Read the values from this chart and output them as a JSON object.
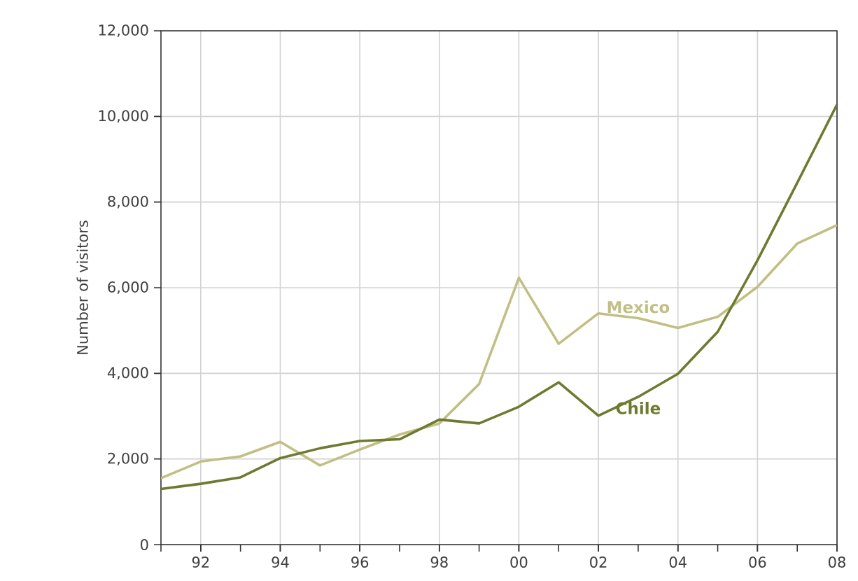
{
  "chart_data": {
    "type": "line",
    "ylabel": "Number of visitors",
    "x": [
      1991,
      1992,
      1993,
      1994,
      1995,
      1996,
      1997,
      1998,
      1999,
      2000,
      2001,
      2002,
      2003,
      2004,
      2005,
      2006,
      2007,
      2008
    ],
    "series": [
      {
        "name": "Mexico",
        "color": "#c2bf84",
        "values": [
          1550,
          1940,
          2060,
          2400,
          1850,
          2220,
          2570,
          2830,
          3750,
          6230,
          4690,
          5400,
          5290,
          5060,
          5320,
          6020,
          7030,
          7460
        ]
      },
      {
        "name": "Chile",
        "color": "#6e7a30",
        "values": [
          1300,
          1420,
          1570,
          2020,
          2250,
          2420,
          2460,
          2920,
          2830,
          3220,
          3790,
          3010,
          3450,
          3990,
          4970,
          6640,
          8450,
          10280
        ]
      }
    ],
    "xlim": [
      1991,
      2008
    ],
    "xticks": [
      {
        "value": 1992,
        "label": "92"
      },
      {
        "value": 1994,
        "label": "94"
      },
      {
        "value": 1996,
        "label": "96"
      },
      {
        "value": 1998,
        "label": "98"
      },
      {
        "value": 2000,
        "label": "00"
      },
      {
        "value": 2002,
        "label": "02"
      },
      {
        "value": 2004,
        "label": "04"
      },
      {
        "value": 2006,
        "label": "06"
      },
      {
        "value": 2008,
        "label": "08"
      }
    ],
    "ylim": [
      0,
      12000
    ],
    "yticks": [
      {
        "value": 0,
        "label": "0"
      },
      {
        "value": 2000,
        "label": "2,000"
      },
      {
        "value": 4000,
        "label": "4,000"
      },
      {
        "value": 6000,
        "label": "6,000"
      },
      {
        "value": 8000,
        "label": "8,000"
      },
      {
        "value": 10000,
        "label": "10,000"
      },
      {
        "value": 12000,
        "label": "12,000"
      }
    ],
    "grid": true,
    "legend": false,
    "marker": "none",
    "line_style": "solid"
  }
}
